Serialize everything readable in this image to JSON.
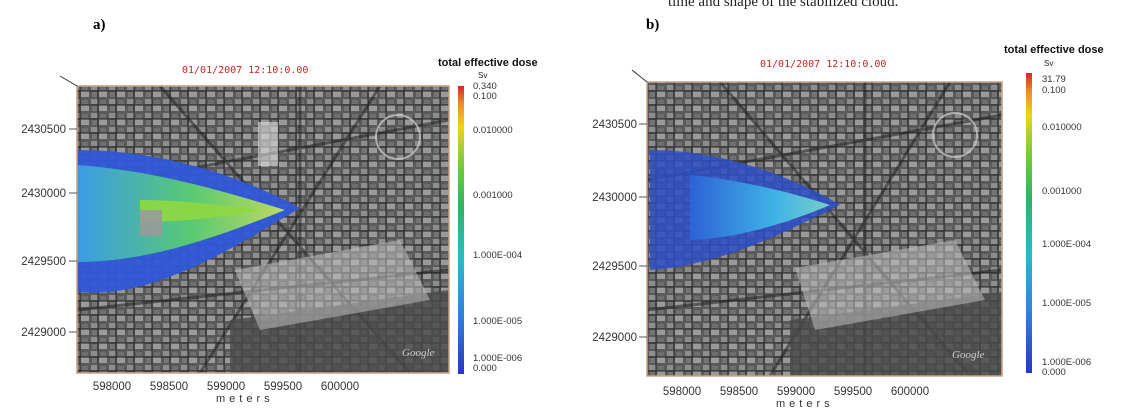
{
  "caption_fragment": "time and shape of the stabilized cloud.",
  "panels": [
    {
      "label": "a)",
      "timestamp": "01/01/2007   12:10:0.00",
      "colorbar": {
        "title": "total effective dose",
        "unit": "Sv",
        "top_values": [
          "0.340",
          "0.100"
        ],
        "labels": [
          "0.010000",
          "0.001000",
          "1.000E-004",
          "1.000E-005",
          "1.000E-006"
        ],
        "bottom_value": "0.000"
      }
    },
    {
      "label": "b)",
      "timestamp": "01/01/2007   12:10:0.00",
      "colorbar": {
        "title": "total effective dose",
        "unit": "Sv",
        "top_values": [
          "31.79",
          "0.100"
        ],
        "labels": [
          "0.010000",
          "0.001000",
          "1.000E-004",
          "1.000E-005",
          "1.000E-006"
        ],
        "bottom_value": "0.000"
      }
    }
  ],
  "map_credit": "Google",
  "chart_data": [
    {
      "type": "heatmap",
      "title": "01/01/2007   12:10:0.00",
      "xlabel": "meters",
      "ylabel": "",
      "x_ticks": [
        598000,
        598500,
        599000,
        599500,
        600000
      ],
      "y_ticks": [
        2429000,
        2429500,
        2430000,
        2430500
      ],
      "colorbar_title": "total effective dose",
      "colorbar_unit": "Sv",
      "colorbar_max": 0.34,
      "colorbar_ticks": [
        0.1,
        0.01,
        0.001,
        0.0001,
        1e-05,
        1e-06
      ],
      "colorbar_min": 0.0
    },
    {
      "type": "heatmap",
      "title": "01/01/2007   12:10:0.00",
      "xlabel": "meters",
      "ylabel": "",
      "x_ticks": [
        598000,
        598500,
        599000,
        599500,
        600000
      ],
      "y_ticks": [
        2429000,
        2429500,
        2430000,
        2430500
      ],
      "colorbar_title": "total effective dose",
      "colorbar_unit": "Sv",
      "colorbar_max": 31.79,
      "colorbar_ticks": [
        0.1,
        0.01,
        0.001,
        0.0001,
        1e-05,
        1e-06
      ],
      "colorbar_min": 0.0
    }
  ]
}
